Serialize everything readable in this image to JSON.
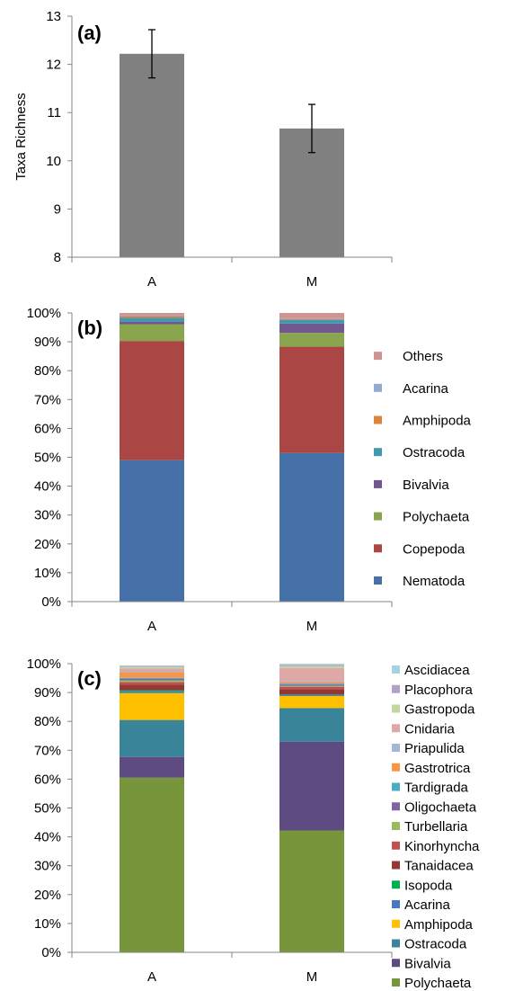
{
  "chart_data": [
    {
      "type": "bar",
      "panel_label": "(a)",
      "ylabel": "Taxa Richness",
      "categories": [
        "A",
        "M"
      ],
      "values": [
        12.22,
        10.67
      ],
      "error": [
        0.5,
        0.5
      ],
      "ylim": [
        8,
        13
      ],
      "yticks": [
        "8",
        "9",
        "10",
        "11",
        "12",
        "13"
      ],
      "color": "#808080"
    },
    {
      "type": "bar",
      "stacked": true,
      "percent": true,
      "panel_label": "(b)",
      "categories": [
        "A",
        "M"
      ],
      "yticks": [
        "0%",
        "10%",
        "20%",
        "30%",
        "40%",
        "50%",
        "60%",
        "70%",
        "80%",
        "90%",
        "100%"
      ],
      "legend_position": "right",
      "series": [
        {
          "name": "Nematoda",
          "color": "#4670A8",
          "values": [
            49.0,
            51.5
          ]
        },
        {
          "name": "Copepoda",
          "color": "#AA4643",
          "values": [
            41.3,
            36.8
          ]
        },
        {
          "name": "Polychaeta",
          "color": "#89A54E",
          "values": [
            5.8,
            4.8
          ]
        },
        {
          "name": "Bivalvia",
          "color": "#71588F",
          "values": [
            0.9,
            3.2
          ]
        },
        {
          "name": "Ostracoda",
          "color": "#4198AF",
          "values": [
            1.4,
            1.2
          ]
        },
        {
          "name": "Amphipoda",
          "color": "#DB843D",
          "values": [
            0.5,
            0.3
          ]
        },
        {
          "name": "Acarina",
          "color": "#93A9CF",
          "values": [
            0.2,
            0.4
          ]
        },
        {
          "name": "Others",
          "color": "#D19392",
          "values": [
            0.9,
            1.8
          ]
        }
      ]
    },
    {
      "type": "bar",
      "stacked": true,
      "percent": true,
      "panel_label": "(c)",
      "categories": [
        "A",
        "M"
      ],
      "yticks": [
        "0%",
        "10%",
        "20%",
        "30%",
        "40%",
        "50%",
        "60%",
        "70%",
        "80%",
        "90%",
        "100%"
      ],
      "legend_position": "right",
      "series": [
        {
          "name": "Polychaeta",
          "color": "#77963C",
          "values": [
            60.5,
            42.2
          ]
        },
        {
          "name": "Bivalvia",
          "color": "#5E4B82",
          "values": [
            7.2,
            30.8
          ]
        },
        {
          "name": "Ostracoda",
          "color": "#3A8499",
          "values": [
            12.8,
            11.6
          ]
        },
        {
          "name": "Amphipoda",
          "color": "#FFC000",
          "values": [
            9.3,
            4.2
          ]
        },
        {
          "name": "Acarina",
          "color": "#4677BF",
          "values": [
            0.6,
            0.3
          ]
        },
        {
          "name": "Isopoda",
          "color": "#00B050",
          "values": [
            0.4,
            0.2
          ]
        },
        {
          "name": "Tanaidacea",
          "color": "#953735",
          "values": [
            1.9,
            1.8
          ]
        },
        {
          "name": "Kinorhyncha",
          "color": "#C0504D",
          "values": [
            0.9,
            0.9
          ]
        },
        {
          "name": "Turbellaria",
          "color": "#9BBB59",
          "values": [
            0.6,
            0.3
          ]
        },
        {
          "name": "Oligochaeta",
          "color": "#8064A2",
          "values": [
            0.5,
            0.5
          ]
        },
        {
          "name": "Tardigrada",
          "color": "#4BACC6",
          "values": [
            0.4,
            0.3
          ]
        },
        {
          "name": "Gastrotrica",
          "color": "#F79646",
          "values": [
            2.0,
            0.5
          ]
        },
        {
          "name": "Priapulida",
          "color": "#A5B5DA",
          "values": [
            0.4,
            0.3
          ]
        },
        {
          "name": "Cnidaria",
          "color": "#DDA8A6",
          "values": [
            0.9,
            4.6
          ]
        },
        {
          "name": "Gastropoda",
          "color": "#C3D69B",
          "values": [
            0.5,
            0.6
          ]
        },
        {
          "name": "Placophora",
          "color": "#B3A2C7",
          "values": [
            0.3,
            0.4
          ]
        },
        {
          "name": "Ascidiacea",
          "color": "#A9D2DF",
          "values": [
            0.2,
            0.5
          ]
        }
      ]
    }
  ]
}
